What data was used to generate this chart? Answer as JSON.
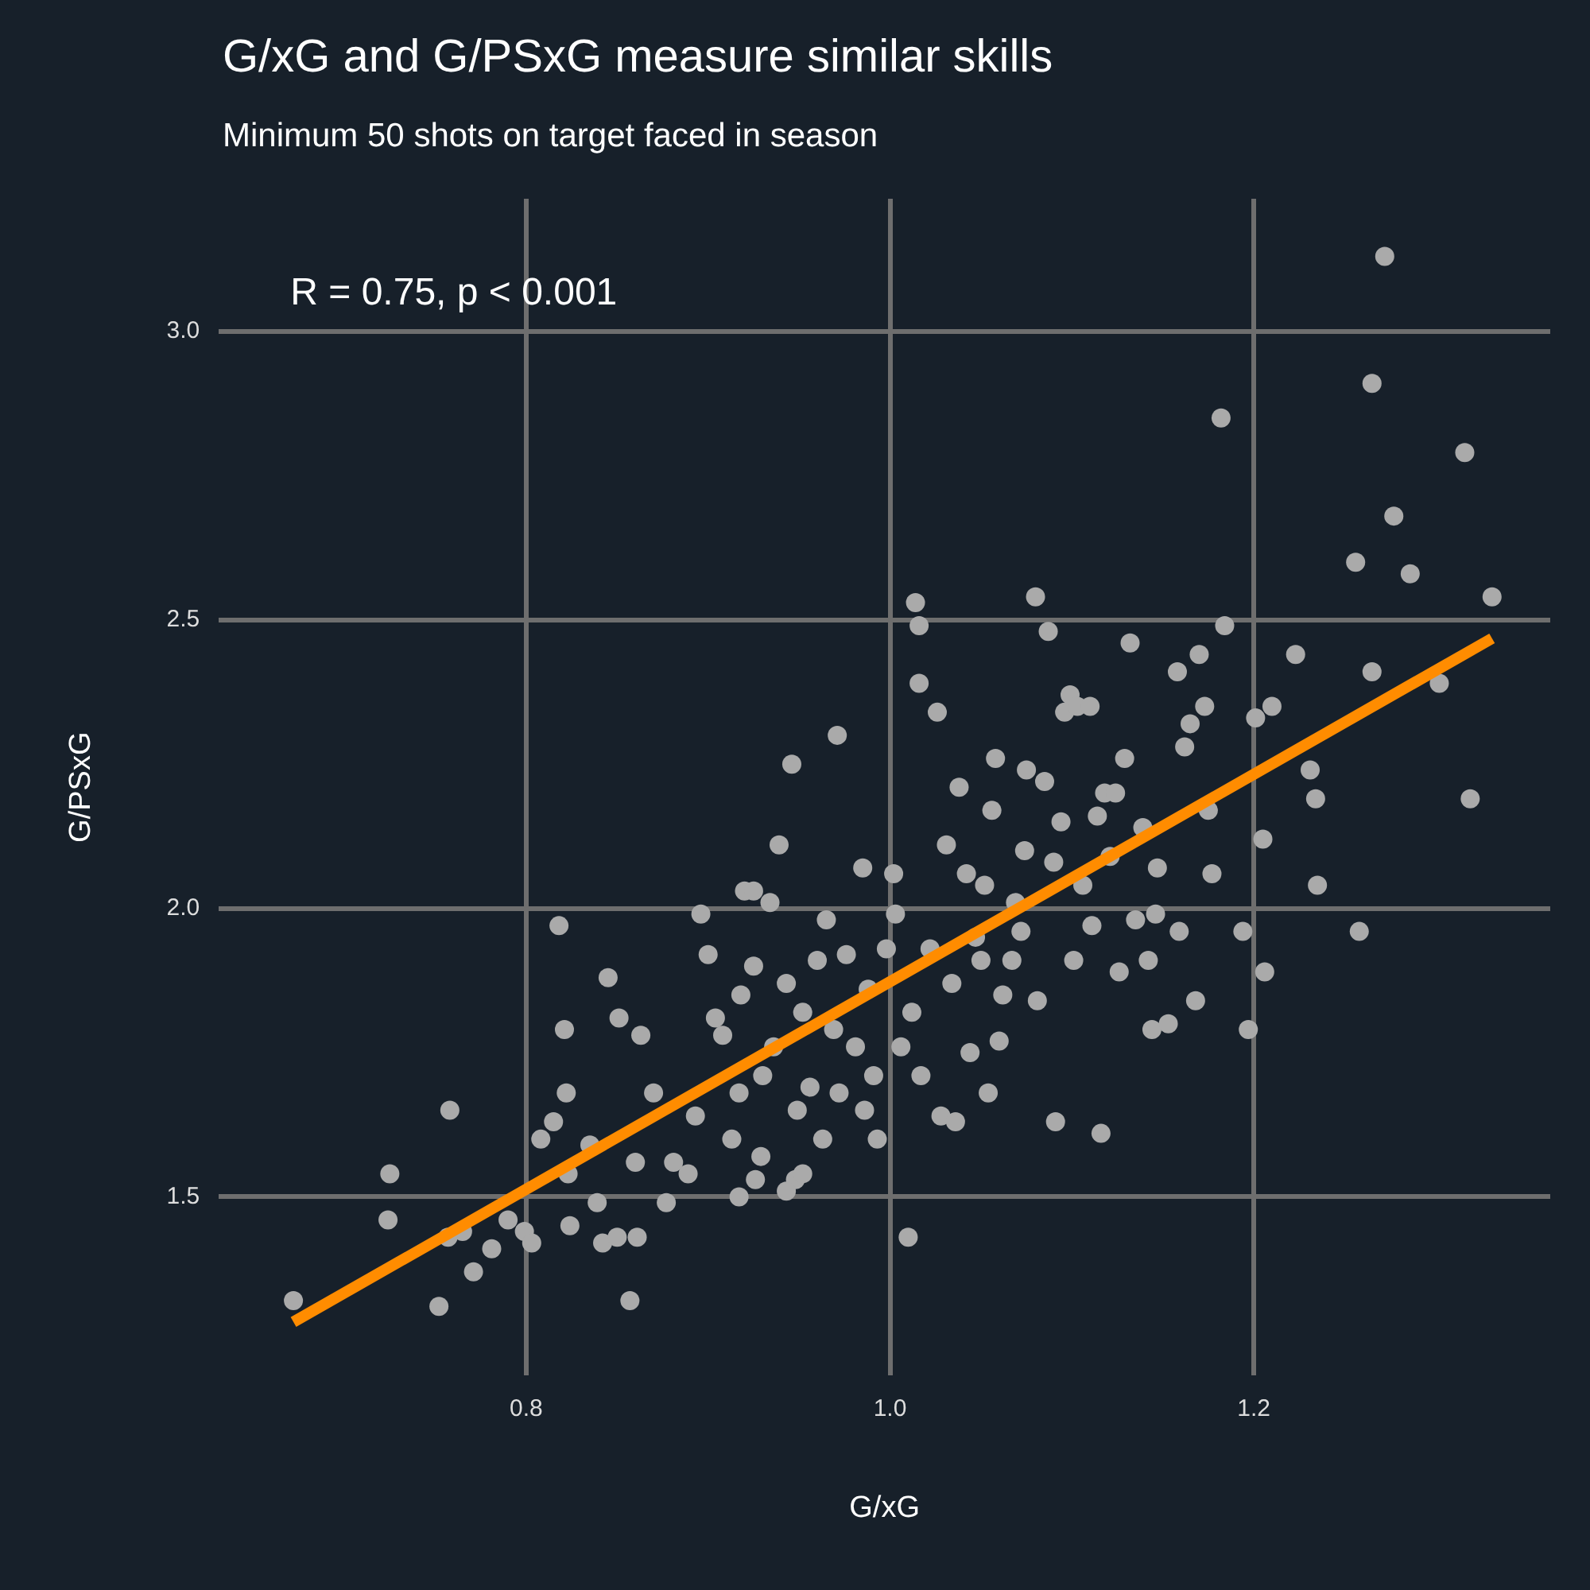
{
  "chart_data": {
    "type": "scatter",
    "title": "G/xG and G/PSxG measure similar skills",
    "subtitle": "Minimum 50 shots on target faced in season",
    "xlabel": "G/xG",
    "ylabel": "G/PSxG",
    "annotations": [
      "R = 0.75, p < 0.001"
    ],
    "xlim": [
      0.631,
      1.363
    ],
    "ylim": [
      1.19,
      3.23
    ],
    "xticks": [
      0.8,
      {
        "value": 1,
        "label": "1.0"
      },
      1.2
    ],
    "yticks": [
      1.5,
      {
        "value": 2,
        "label": "2.0"
      },
      2.5,
      {
        "value": 3,
        "label": "3.0"
      }
    ],
    "grid": true,
    "legend": false,
    "marker": "circle",
    "series": [
      {
        "type": "scatter",
        "color": "#aaaaaa",
        "x": [
          0.672,
          0.725,
          0.724,
          0.752,
          0.758,
          0.757,
          0.765,
          0.771,
          0.781,
          0.79,
          0.799,
          0.803,
          0.808,
          0.815,
          0.818,
          0.821,
          0.822,
          0.823,
          0.824,
          0.835,
          0.839,
          0.842,
          0.845,
          0.851,
          0.85,
          0.857,
          0.861,
          0.863,
          0.86,
          0.87,
          0.877,
          0.881,
          0.889,
          0.893,
          0.896,
          0.9,
          0.904,
          0.908,
          0.913,
          0.917,
          0.918,
          0.92,
          0.925,
          0.925,
          0.929,
          0.93,
          0.934,
          0.936,
          0.939,
          0.943,
          0.946,
          0.948,
          0.949,
          0.952,
          0.956,
          0.96,
          0.963,
          0.965,
          0.969,
          0.971,
          0.972,
          0.976,
          0.981,
          0.985,
          0.986,
          0.988,
          0.991,
          0.993,
          0.998,
          1.002,
          1.003,
          1.006,
          1.01,
          1.012,
          1.014,
          1.016,
          1.016,
          1.017,
          1.022,
          1.026,
          1.028,
          1.031,
          1.034,
          1.036,
          1.038,
          1.042,
          1.044,
          1.047,
          1.05,
          1.052,
          1.054,
          1.056,
          1.058,
          1.06,
          1.062,
          1.067,
          1.069,
          1.072,
          1.074,
          1.075,
          1.08,
          1.081,
          1.085,
          1.087,
          1.09,
          1.091,
          1.094,
          1.096,
          1.099,
          1.101,
          1.103,
          1.106,
          1.11,
          1.111,
          1.114,
          1.116,
          1.118,
          1.121,
          1.124,
          1.126,
          1.129,
          1.132,
          1.135,
          1.139,
          1.142,
          1.144,
          1.146,
          1.147,
          1.153,
          1.158,
          1.159,
          1.162,
          1.165,
          1.168,
          1.17,
          1.173,
          1.175,
          1.177,
          1.182,
          1.184,
          1.194,
          1.197,
          1.201,
          1.205,
          1.206,
          1.21,
          1.223,
          1.231,
          1.234,
          1.235,
          1.256,
          1.258,
          1.265,
          1.265,
          1.272,
          1.277,
          1.286,
          1.302,
          1.316,
          1.319,
          1.331,
          0.917,
          0.926,
          0.943,
          0.952
        ],
        "values": [
          1.32,
          1.54,
          1.46,
          1.31,
          1.65,
          1.43,
          1.44,
          1.37,
          1.41,
          1.46,
          1.44,
          1.42,
          1.6,
          1.63,
          1.97,
          1.79,
          1.68,
          1.54,
          1.45,
          1.59,
          1.49,
          1.42,
          1.88,
          1.81,
          1.43,
          1.32,
          1.43,
          1.78,
          1.56,
          1.68,
          1.49,
          1.56,
          1.54,
          1.64,
          1.99,
          1.92,
          1.81,
          1.78,
          1.6,
          1.68,
          1.85,
          2.03,
          2.03,
          1.9,
          1.57,
          1.71,
          2.01,
          1.76,
          2.11,
          1.87,
          2.25,
          1.53,
          1.65,
          1.82,
          1.69,
          1.91,
          1.6,
          1.98,
          1.79,
          2.3,
          1.68,
          1.92,
          1.76,
          2.07,
          1.65,
          1.86,
          1.71,
          1.6,
          1.93,
          2.06,
          1.99,
          1.76,
          1.43,
          1.82,
          2.53,
          2.49,
          2.39,
          1.71,
          1.93,
          2.34,
          1.64,
          2.11,
          1.87,
          1.63,
          2.21,
          2.06,
          1.75,
          1.95,
          1.91,
          2.04,
          1.68,
          2.17,
          2.26,
          1.77,
          1.85,
          1.91,
          2.01,
          1.96,
          2.1,
          2.24,
          2.54,
          1.84,
          2.22,
          2.48,
          2.08,
          1.63,
          2.15,
          2.34,
          2.37,
          1.91,
          2.35,
          2.04,
          2.35,
          1.97,
          2.16,
          1.61,
          2.2,
          2.09,
          2.2,
          1.89,
          2.26,
          2.46,
          1.98,
          2.14,
          1.91,
          1.79,
          1.99,
          2.07,
          1.8,
          2.41,
          1.96,
          2.28,
          2.32,
          1.84,
          2.44,
          2.35,
          2.17,
          2.06,
          2.85,
          2.49,
          1.96,
          1.79,
          2.33,
          2.12,
          1.89,
          2.35,
          2.44,
          2.24,
          2.19,
          2.04,
          2.6,
          1.96,
          2.41,
          2.91,
          3.13,
          2.68,
          2.58,
          2.39,
          2.79,
          2.19,
          2.54,
          1.5,
          1.53,
          1.51,
          1.54
        ]
      },
      {
        "type": "line",
        "color": "#ff8c00",
        "marker": "none",
        "line_style": "solid",
        "x": [
          0.672,
          1.331
        ],
        "values": [
          1.283,
          2.468
        ]
      }
    ]
  }
}
